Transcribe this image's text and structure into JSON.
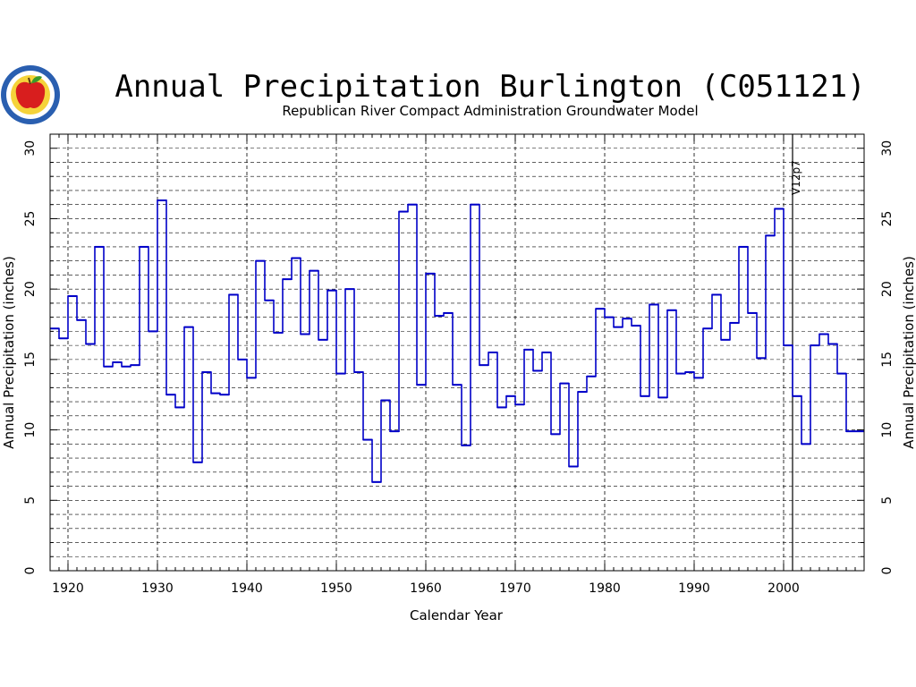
{
  "colors": {
    "series": "#0000c8",
    "grid": "#000000",
    "logo_ring": "#2a5fb0",
    "logo_inner": "#f5d33a",
    "logo_apple": "#d81e1e",
    "logo_leaf": "#3a9a2a"
  },
  "chart_data": {
    "type": "line",
    "step": true,
    "title": "Annual Precipitation Burlington (C051121)",
    "subtitle": "Republican River Compact Administration Groundwater Model",
    "xlabel": "Calendar Year",
    "ylabel": "Annual Precipitation (inches)",
    "xlim": [
      1918,
      2009
    ],
    "ylim": [
      0,
      31
    ],
    "x_ticks": [
      1920,
      1930,
      1940,
      1950,
      1960,
      1970,
      1980,
      1990,
      2000
    ],
    "y_ticks": [
      0,
      5,
      10,
      15,
      20,
      25,
      30
    ],
    "grid": true,
    "annotation": {
      "label": "V12p7",
      "year": 2001
    },
    "series": [
      {
        "x": [
          1918,
          1919,
          1920,
          1921,
          1922,
          1923,
          1924,
          1925,
          1926,
          1927,
          1928,
          1929,
          1930,
          1931,
          1932,
          1933,
          1934,
          1935,
          1936,
          1937,
          1938,
          1939,
          1940,
          1941,
          1942,
          1943,
          1944,
          1945,
          1946,
          1947,
          1948,
          1949,
          1950,
          1951,
          1952,
          1953,
          1954,
          1955,
          1956,
          1957,
          1958,
          1959,
          1960,
          1961,
          1962,
          1963,
          1964,
          1965,
          1966,
          1967,
          1968,
          1969,
          1970,
          1971,
          1972,
          1973,
          1974,
          1975,
          1976,
          1977,
          1978,
          1979,
          1980,
          1981,
          1982,
          1983,
          1984,
          1985,
          1986,
          1987,
          1988,
          1989,
          1990,
          1991,
          1992,
          1993,
          1994,
          1995,
          1996,
          1997,
          1998,
          1999,
          2000,
          2001,
          2002,
          2003,
          2004,
          2005,
          2006,
          2007,
          2008
        ],
        "values": [
          17.2,
          16.5,
          19.5,
          17.8,
          16.1,
          23.0,
          14.5,
          14.8,
          14.5,
          14.6,
          23.0,
          17.0,
          26.3,
          12.5,
          11.6,
          17.3,
          7.7,
          14.1,
          12.6,
          12.5,
          19.6,
          15.0,
          13.7,
          22.0,
          19.2,
          16.9,
          20.7,
          22.2,
          16.8,
          21.3,
          16.4,
          19.9,
          14.0,
          20.0,
          14.1,
          9.3,
          6.3,
          12.1,
          9.9,
          25.5,
          26.0,
          13.2,
          21.1,
          18.1,
          18.3,
          13.2,
          8.9,
          26.0,
          14.6,
          15.5,
          11.6,
          12.4,
          11.8,
          15.7,
          14.2,
          15.5,
          9.7,
          13.3,
          7.4,
          12.7,
          13.8,
          18.6,
          18.0,
          17.3,
          17.9,
          17.4,
          12.4,
          18.9,
          12.3,
          18.5,
          14.0,
          14.1,
          13.7,
          17.2,
          19.6,
          16.4,
          17.6,
          23.0,
          18.3,
          15.1,
          23.8,
          25.7,
          16.0,
          12.4,
          9.0,
          16.0,
          16.8,
          16.1,
          14.0,
          9.9,
          9.9
        ]
      }
    ]
  }
}
